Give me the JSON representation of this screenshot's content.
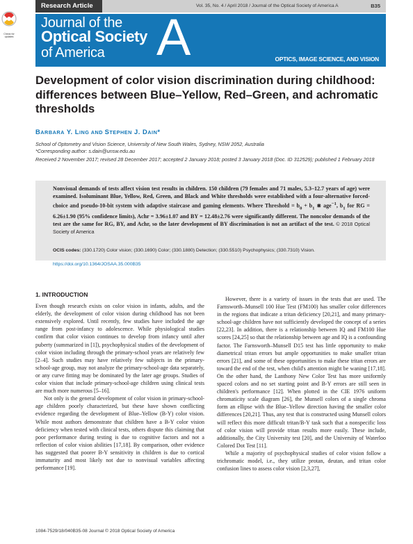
{
  "header": {
    "article_type": "Research Article",
    "running_head": "Vol. 35, No. 4 / April 2018 / Journal of the Optical Society of America A",
    "page_number": "B35"
  },
  "crossmark": {
    "label": "Check for updates"
  },
  "journal": {
    "line1": "Journal of the",
    "line2": "Optical Society",
    "line3": "of America",
    "letter": "A",
    "subtitle": "OPTICS, IMAGE SCIENCE, AND VISION"
  },
  "title": "Development of color vision discrimination during childhood: differences between Blue–Yellow, Red–Green, and achromatic thresholds",
  "authors": {
    "a1_first": "B",
    "a1_first_rest": "ARBARA",
    "a1_mid": " Y. L",
    "a1_last_rest": "ING",
    "and": " AND ",
    "a2_first": "S",
    "a2_first_rest": "TEPHEN",
    "a2_mid": " J. D",
    "a2_last_rest": "AIN",
    "mark": "*"
  },
  "affiliation": "School of Optometry and Vision Science, University of New South Wales, Sydney, NSW 2052, Australia",
  "corresponding": "*Corresponding author: s.dain@unsw.edu.au",
  "dates": "Received 2 November 2017; revised 28 December 2017; accepted 2 January 2018; posted 3 January 2018 (Doc. ID 312529); published 1 February 2018",
  "abstract": {
    "p1": "Nonvisual demands of tests affect vision test results in children. 150 children (79 females and 71 males, 5.3–12.7 years of age) were examined. Isoluminant Blue, Yellow, Red, Green, and Black and White thresholds were established with a four-alternative forced-choice and pseudo-10-bit system with adaptive staircase and gaming elements. Where Threshold = b",
    "sub0": "0",
    "p2": " + b",
    "sub1": "1",
    "p3": " ⋇ age",
    "sup": "−1",
    "p4": ", b",
    "sub1b": "1",
    "p5": " for RG = 6.26±1.90 (95% confidence limits), Achr = 3.96±1.07 and BY = 12.48±2.76 were significantly different. The noncolor demands of the test are the same for RG, BY, and Achr, so the later development of BY discrimination is not an artifact of the test.",
    "copyright": "   © 2018 Optical Society of America"
  },
  "ocis": {
    "label": "OCIS codes:",
    "text": " (330.1720) Color vision; (330.1690) Color; (330.1880) Detection; (330.5510) Psychophysics; (330.7310) Vision."
  },
  "doi": "https://doi.org/10.1364/JOSAA.35.000B35",
  "body": {
    "section": "1. INTRODUCTION",
    "left_p1": "Even though research exists on color vision in infants, adults, and the elderly, the development of color vision during childhood has not been extensively explored. Until recently, few studies have included the age range from post-infancy to adolescence. While physiological studies confirm that color vision continues to develop from infancy until after puberty (summarized in [1]), psychophysical studies of the development of color vision including through the primary-school years are relatively few [2–4]. Such studies may have relatively few subjects in the primary-school-age group, may not analyze the primary-school-age data separately, or any curve fitting may be dominated by the later age groups. Studies of color vision that include primary-school-age children using clinical tests are much more numerous [5–16].",
    "left_p2": "Not only is the general development of color vision in primary-school-age children poorly characterized, but these have shown conflicting evidence regarding the development of Blue–Yellow (B-Y) color vision. While most authors demonstrate that children have a B-Y color vision deficiency when tested with clinical tests, others dispute this claiming that poor performance during testing is due to cognitive factors and not a reflection of color vision abilities [17,18]. By comparison, other evidence has suggested that poorer B-Y sensitivity in children is due to cortical immaturity and most likely not due to nonvisual variables affecting performance [19].",
    "right_p1": "However, there is a variety of issues in the tests that are used. The Farnsworth–Munsell 100 Hue Test (FM100) has smaller color differences in the regions that indicate a tritan deficiency [20,21], and many primary-school-age children have not sufficiently developed the concept of a series [22,23]. In addition, there is a relationship between IQ and FM100 Hue scores [24,25] so that the relationship between age and IQ is a confounding factor. The Farnsworth–Munsell D15 test has little opportunity to make diametrical tritan errors but ample opportunities to make smaller tritan errors [21], and some of these opportunities to make these tritan errors are toward the end of the test, when child's attention might be waning [17,18]. On the other hand, the Lanthony New Color Test has more uniformly spaced colors and no set starting point and B-Y errors are still seen in children's performance [12]. When plotted in the CIE 1976 uniform chromaticity scale diagram [26], the Munsell colors of a single chroma form an ellipse with the Blue–Yellow direction having the smaller color differences [20,21]. Thus, any test that is constructed using Munsell colors will reflect this more difficult tritan/B-Y task such that a nonspecific loss of color vision will provide tritan results more easily. These include, additionally, the City University test [20], and the University of Waterloo Colored Dot Test [11].",
    "right_p2": "While a majority of psychophysical studies of color vision follow a trichromatic model, i.e., they utilize protan, deutan, and tritan color confusion lines to assess color vision [2,3,27],"
  },
  "footer": "1084-7529/18/040B35-08 Journal © 2018 Optical Society of America",
  "colors": {
    "journal_blue": "#1577b7",
    "header_dark": "#3a3a3a",
    "header_light": "#cfcfcf",
    "abstract_bg": "#e6e6e6"
  }
}
